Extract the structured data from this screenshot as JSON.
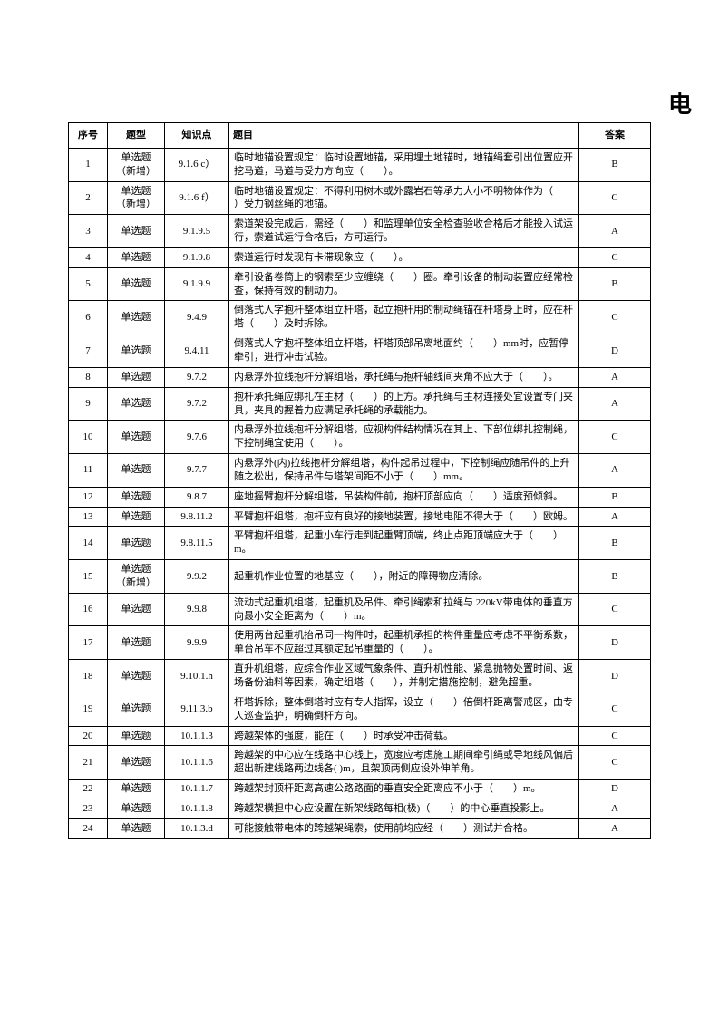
{
  "title_fragment": "电",
  "headers": {
    "num": "序号",
    "type": "题型",
    "kp": "知识点",
    "q": "题目",
    "ans": "答案"
  },
  "rows": [
    {
      "num": "1",
      "type": "单选题（新增）",
      "kp": "9.1.6 c）",
      "q": "临时地锚设置规定：临时设置地锚，采用埋土地锚时，地锚绳套引出位置应开挖马道，马道与受力方向应（　　）。",
      "ans": "B"
    },
    {
      "num": "2",
      "type": "单选题（新增）",
      "kp": "9.1.6 f）",
      "q": "临时地锚设置规定：不得利用树木或外露岩石等承力大小不明物体作为（　　）受力钢丝绳的地锚。",
      "ans": "C"
    },
    {
      "num": "3",
      "type": "单选题",
      "kp": "9.1.9.5",
      "q": "索道架设完成后，需经（　　）和监理单位安全检查验收合格后才能投入试运行，索道试运行合格后，方可运行。",
      "ans": "A"
    },
    {
      "num": "4",
      "type": "单选题",
      "kp": "9.1.9.8",
      "q": "索道运行时发现有卡滞现象应（　　）。",
      "ans": "C"
    },
    {
      "num": "5",
      "type": "单选题",
      "kp": "9.1.9.9",
      "q": "牵引设备卷筒上的钢索至少应缠绕（　　）圈。牵引设备的制动装置应经常检查，保持有效的制动力。",
      "ans": "B"
    },
    {
      "num": "6",
      "type": "单选题",
      "kp": "9.4.9",
      "q": "倒落式人字抱杆整体组立杆塔，起立抱杆用的制动绳锚在杆塔身上时，应在杆塔（　　）及时拆除。",
      "ans": "C"
    },
    {
      "num": "7",
      "type": "单选题",
      "kp": "9.4.11",
      "q": "倒落式人字抱杆整体组立杆塔，杆塔顶部吊离地面约（　　）mm时，应暂停牵引，进行冲击试验。",
      "ans": "D"
    },
    {
      "num": "8",
      "type": "单选题",
      "kp": "9.7.2",
      "q": "内悬浮外拉线抱杆分解组塔，承托绳与抱杆轴线间夹角不应大于（　　）。",
      "ans": "A"
    },
    {
      "num": "9",
      "type": "单选题",
      "kp": "9.7.2",
      "q": "抱杆承托绳应绑扎在主材（　　）的上方。承托绳与主材连接处宜设置专门夹具，夹具的握着力应满足承托绳的承载能力。",
      "ans": "A"
    },
    {
      "num": "10",
      "type": "单选题",
      "kp": "9.7.6",
      "q": "内悬浮外拉线抱杆分解组塔，应视构件结构情况在其上、下部位绑扎控制绳，下控制绳宜使用（　　）。",
      "ans": "C"
    },
    {
      "num": "11",
      "type": "单选题",
      "kp": "9.7.7",
      "q": "内悬浮外(内)拉线抱杆分解组塔，构件起吊过程中，下控制绳应随吊件的上升随之松出，保持吊件与塔架间距不小于（　　）mm。",
      "ans": "A"
    },
    {
      "num": "12",
      "type": "单选题",
      "kp": "9.8.7",
      "q": "座地摇臂抱杆分解组塔，吊装构件前，抱杆顶部应向（　　）适度预倾斜。",
      "ans": "B"
    },
    {
      "num": "13",
      "type": "单选题",
      "kp": "9.8.11.2",
      "q": "平臂抱杆组塔，抱杆应有良好的接地装置，接地电阻不得大于（　　）欧姆。",
      "ans": "A"
    },
    {
      "num": "14",
      "type": "单选题",
      "kp": "9.8.11.5",
      "q": "平臂抱杆组塔，起重小车行走到起重臂顶端，终止点距顶端应大于（　　）m。",
      "ans": "B"
    },
    {
      "num": "15",
      "type": "单选题（新增）",
      "kp": "9.9.2",
      "q": "起重机作业位置的地基应（　　），附近的障碍物应清除。",
      "ans": "B"
    },
    {
      "num": "16",
      "type": "单选题",
      "kp": "9.9.8",
      "q": "流动式起重机组塔，起重机及吊件、牵引绳索和拉绳与 220kV带电体的垂直方向最小安全距离为（　　）m。",
      "ans": "C"
    },
    {
      "num": "17",
      "type": "单选题",
      "kp": "9.9.9",
      "q": "使用两台起重机抬吊同一构件时，起重机承担的构件重量应考虑不平衡系数，单台吊车不应超过其额定起吊重量的（　　）。",
      "ans": "D"
    },
    {
      "num": "18",
      "type": "单选题",
      "kp": "9.10.1.h",
      "q": "直升机组塔，应综合作业区域气象条件、直升机性能、紧急抛物处置时间、返场备份油料等因素，确定组塔（　　），并制定措施控制，避免超重。",
      "ans": "D"
    },
    {
      "num": "19",
      "type": "单选题",
      "kp": "9.11.3.b",
      "q": "杆塔拆除，整体倒塔时应有专人指挥，设立（　　）倍倒杆距离警戒区，由专人巡查监护，明确倒杆方向。",
      "ans": "C"
    },
    {
      "num": "20",
      "type": "单选题",
      "kp": "10.1.1.3",
      "q": "跨越架体的强度，能在（　　）时承受冲击荷载。",
      "ans": "C"
    },
    {
      "num": "21",
      "type": "单选题",
      "kp": "10.1.1.6",
      "q": "跨越架的中心应在线路中心线上，宽度应考虑施工期间牵引绳或导地线风偏后超出新建线路两边线各( )m，且架顶两侧应设外伸羊角。",
      "ans": "C"
    },
    {
      "num": "22",
      "type": "单选题",
      "kp": "10.1.1.7",
      "q": "跨越架封顶杆距离高速公路路面的垂直安全距离应不小于（　　）m。",
      "ans": "D"
    },
    {
      "num": "23",
      "type": "单选题",
      "kp": "10.1.1.8",
      "q": "跨越架横担中心应设置在新架线路每相(极)（　　）的中心垂直投影上。",
      "ans": "A"
    },
    {
      "num": "24",
      "type": "单选题",
      "kp": "10.1.3.d",
      "q": "可能接触带电体的跨越架绳索，使用前均应经（　　）测试并合格。",
      "ans": "A"
    }
  ]
}
